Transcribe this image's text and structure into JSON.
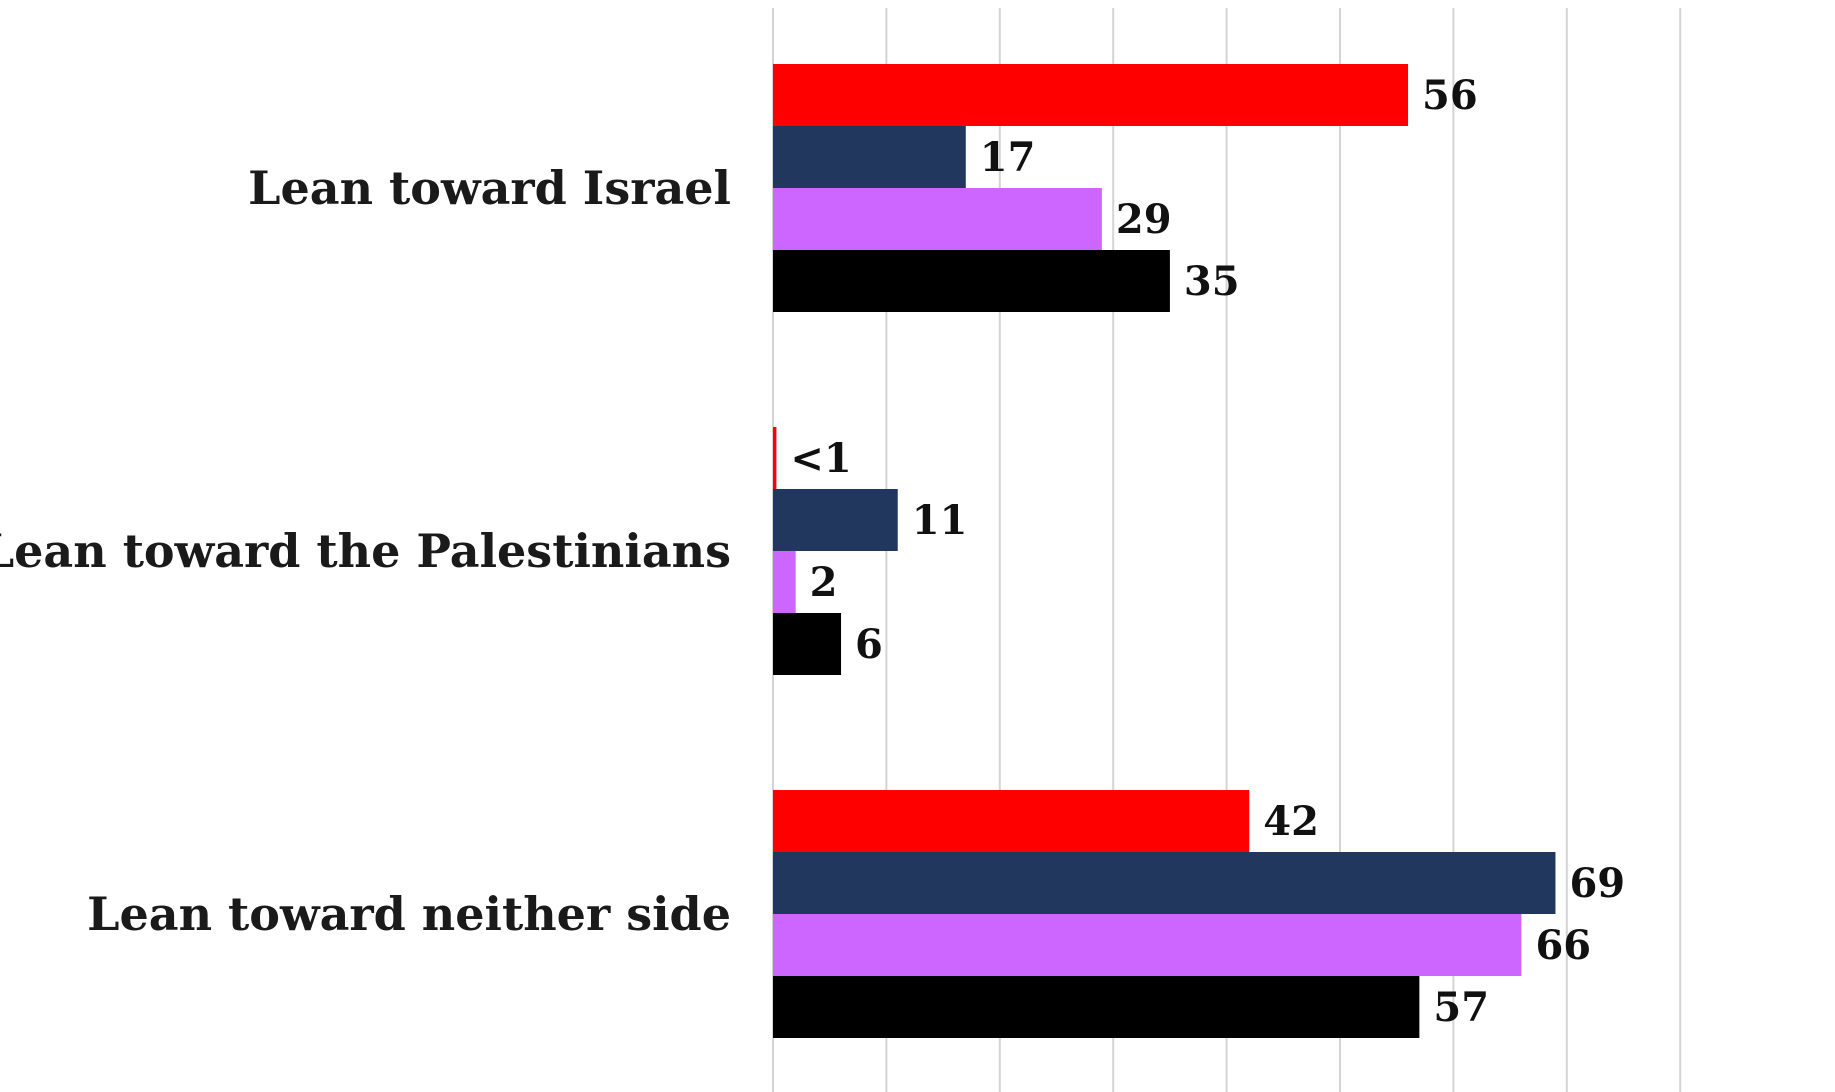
{
  "chart_data": {
    "type": "bar",
    "orientation": "horizontal",
    "title": "",
    "xlabel": "",
    "ylabel": "",
    "xlim": [
      0,
      80
    ],
    "grid": true,
    "legend": "none",
    "categories": [
      "Lean toward Israel",
      "Lean toward the Palestinians",
      "Lean toward neither side"
    ],
    "series": [
      {
        "color": "#ff0000",
        "values": [
          56,
          0.3,
          42
        ],
        "labels": [
          "56",
          "<1",
          "42"
        ]
      },
      {
        "color": "#22375e",
        "values": [
          17,
          11,
          69
        ],
        "labels": [
          "17",
          "11",
          "69"
        ]
      },
      {
        "color": "#cc66ff",
        "values": [
          29,
          2,
          66
        ],
        "labels": [
          "29",
          "2",
          "66"
        ]
      },
      {
        "color": "#000000",
        "values": [
          35,
          6,
          57
        ],
        "labels": [
          "35",
          "6",
          "57"
        ]
      }
    ]
  }
}
